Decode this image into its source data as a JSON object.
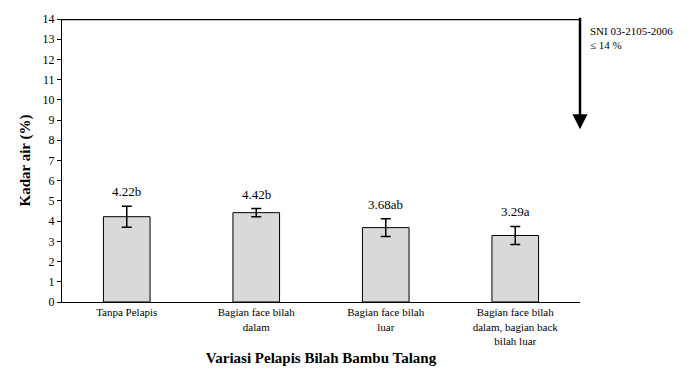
{
  "chart_data": {
    "type": "bar",
    "categories": [
      "Tanpa Pelapis",
      "Bagian face bilah dalam",
      "Bagian face bilah luar",
      "Bagian face bilah dalam, bagian back bilah luar"
    ],
    "values": [
      4.22,
      4.42,
      3.68,
      3.29
    ],
    "value_labels": [
      "4.22b",
      "4.42b",
      "3.68ab",
      "3.29a"
    ],
    "error": [
      0.52,
      0.2,
      0.44,
      0.45
    ],
    "color": "#d9d9d9",
    "xlabel": "Variasi Pelapis Bilah Bambu Talang",
    "ylabel": "Kadar air (%)",
    "ylim": [
      0,
      14
    ],
    "yticks": [
      0,
      1,
      2,
      3,
      4,
      5,
      6,
      7,
      8,
      9,
      10,
      11,
      12,
      13,
      14
    ],
    "grid": false,
    "data_labels": true,
    "reference_line": {
      "value": 14,
      "label": [
        "SNI 03-2105-2006",
        "≤ 14 %"
      ]
    }
  }
}
